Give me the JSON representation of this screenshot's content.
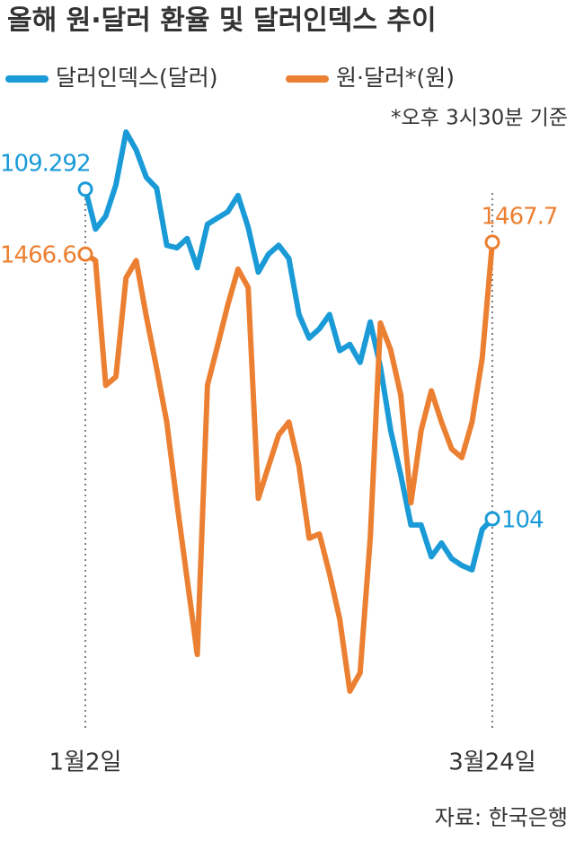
{
  "chart_data": {
    "type": "line",
    "title": "올해 원·달러 환율 및 달러인덱스 추이",
    "note": "*오후 3시30분 기준",
    "source": "자료: 한국은행",
    "categories": [
      "1월2일",
      null,
      null,
      null,
      null,
      null,
      null,
      null,
      null,
      null,
      null,
      null,
      null,
      null,
      null,
      null,
      null,
      null,
      null,
      null,
      null,
      null,
      null,
      null,
      null,
      null,
      null,
      null,
      null,
      null,
      null,
      null,
      null,
      null,
      null,
      null,
      null,
      null,
      null,
      null,
      "3월24일"
    ],
    "ylim": [
      100.8,
      110.6
    ],
    "y2lim": [
      1423.5,
      1480.2
    ],
    "series": [
      {
        "name": "달러인덱스(달러)",
        "color": "#1a9bd7",
        "values": [
          109.292,
          108.65,
          108.86,
          109.36,
          110.21,
          109.92,
          109.48,
          109.31,
          108.39,
          108.35,
          108.5,
          108.03,
          108.73,
          108.83,
          108.93,
          109.19,
          108.68,
          107.96,
          108.25,
          108.39,
          108.18,
          107.28,
          106.9,
          107.05,
          107.28,
          106.7,
          106.8,
          106.51,
          107.16,
          106.44,
          105.42,
          104.7,
          103.9,
          103.9,
          103.39,
          103.61,
          103.36,
          103.25,
          103.18,
          103.83,
          104
        ]
      },
      {
        "name": "원·달러*(원)",
        "color": "#ec8032",
        "axis": "y2",
        "values": [
          1466.6,
          1466.0,
          1454.4,
          1455.2,
          1464.4,
          1466.0,
          1460.8,
          1456.0,
          1451.0,
          1443.5,
          1436.4,
          1429.4,
          1454.4,
          1458.1,
          1461.9,
          1465.2,
          1463.5,
          1443.9,
          1446.9,
          1449.8,
          1451.0,
          1446.9,
          1440.2,
          1440.6,
          1436.9,
          1432.7,
          1426.0,
          1427.7,
          1440.2,
          1460.2,
          1457.7,
          1453.5,
          1443.5,
          1450.2,
          1453.9,
          1451.0,
          1448.5,
          1447.7,
          1451.0,
          1456.9,
          1467.7
        ]
      }
    ]
  }
}
